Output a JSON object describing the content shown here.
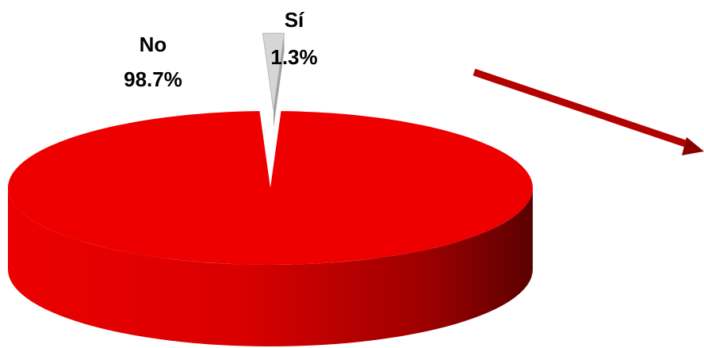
{
  "chart_data": {
    "type": "pie",
    "style": "3d",
    "categories": [
      "No",
      "Sí"
    ],
    "values": [
      98.7,
      1.3
    ],
    "value_labels": [
      "98.7%",
      "1.3%"
    ],
    "colors": [
      "#ee0000",
      "#d6d6d6"
    ],
    "exploded": [
      "Sí"
    ],
    "title": "",
    "legend": "none"
  },
  "annotations": {
    "arrow_color": "#b30000"
  }
}
